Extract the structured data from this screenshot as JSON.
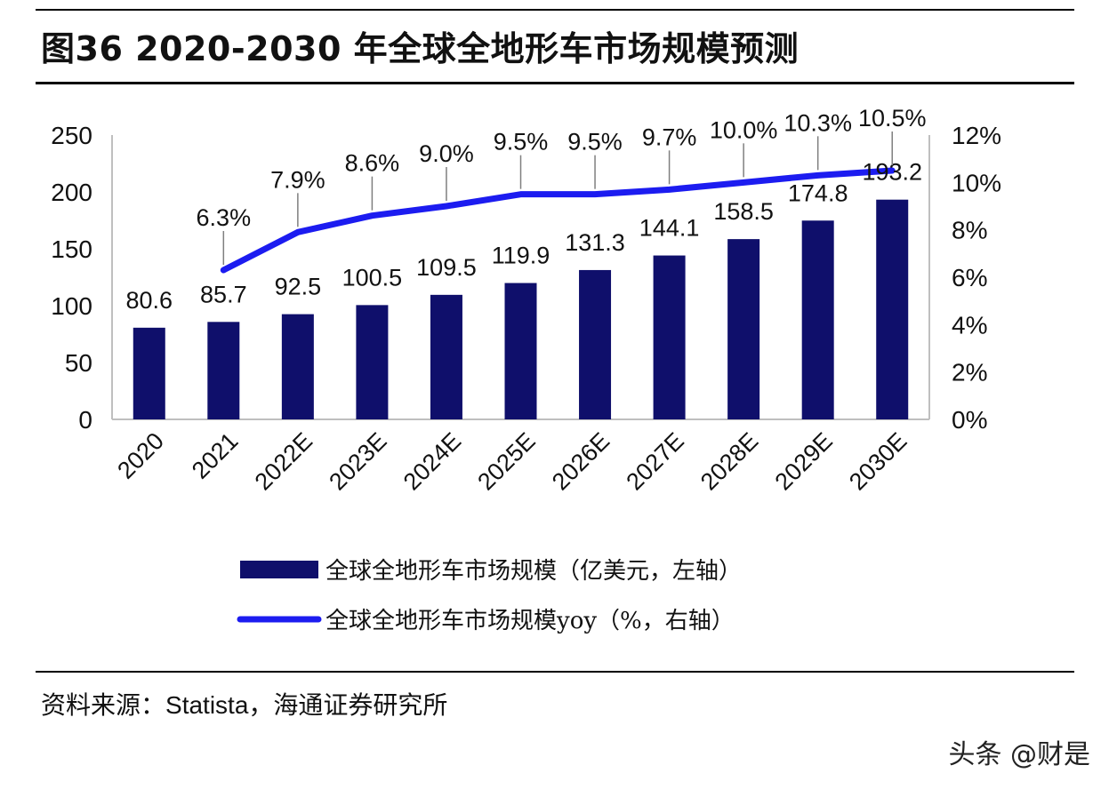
{
  "header": {
    "title": "图36 2020-2030 年全球全地形车市场规模预测"
  },
  "chart_data": {
    "type": "bar+line",
    "categories": [
      "2020",
      "2021",
      "2022E",
      "2023E",
      "2024E",
      "2025E",
      "2026E",
      "2027E",
      "2028E",
      "2029E",
      "2030E"
    ],
    "series": [
      {
        "name": "全球全地形车市场规模（亿美元，左轴）",
        "type": "bar",
        "axis": "left",
        "color": "#0f0f6b",
        "values": [
          80.6,
          85.7,
          92.5,
          100.5,
          109.5,
          119.9,
          131.3,
          144.1,
          158.5,
          174.8,
          193.2
        ],
        "labels": [
          "80.6",
          "85.7",
          "92.5",
          "100.5",
          "109.5",
          "119.9",
          "131.3",
          "144.1",
          "158.5",
          "174.8",
          "193.2"
        ]
      },
      {
        "name": "全球全地形车市场规模yoy（%，右轴）",
        "type": "line",
        "axis": "right",
        "color": "#1c1cf0",
        "values": [
          null,
          6.3,
          7.9,
          8.6,
          9.0,
          9.5,
          9.5,
          9.7,
          10.0,
          10.3,
          10.5
        ],
        "labels": [
          "",
          "6.3%",
          "7.9%",
          "8.6%",
          "9.0%",
          "9.5%",
          "9.5%",
          "9.7%",
          "10.0%",
          "10.3%",
          "10.5%"
        ]
      }
    ],
    "y_left": {
      "ylim": [
        0,
        250
      ],
      "ticks": [
        "0",
        "50",
        "100",
        "150",
        "200",
        "250"
      ]
    },
    "y_right": {
      "ylim": [
        0,
        12
      ],
      "ticks": [
        "0%",
        "2%",
        "4%",
        "6%",
        "8%",
        "10%",
        "12%"
      ]
    },
    "grid": false,
    "legend_position": "bottom"
  },
  "footer": {
    "source_prefix": "资料来源：",
    "source_latin": "Statista",
    "source_suffix": "，海通证券研究所"
  },
  "watermark": "头条 @财是"
}
